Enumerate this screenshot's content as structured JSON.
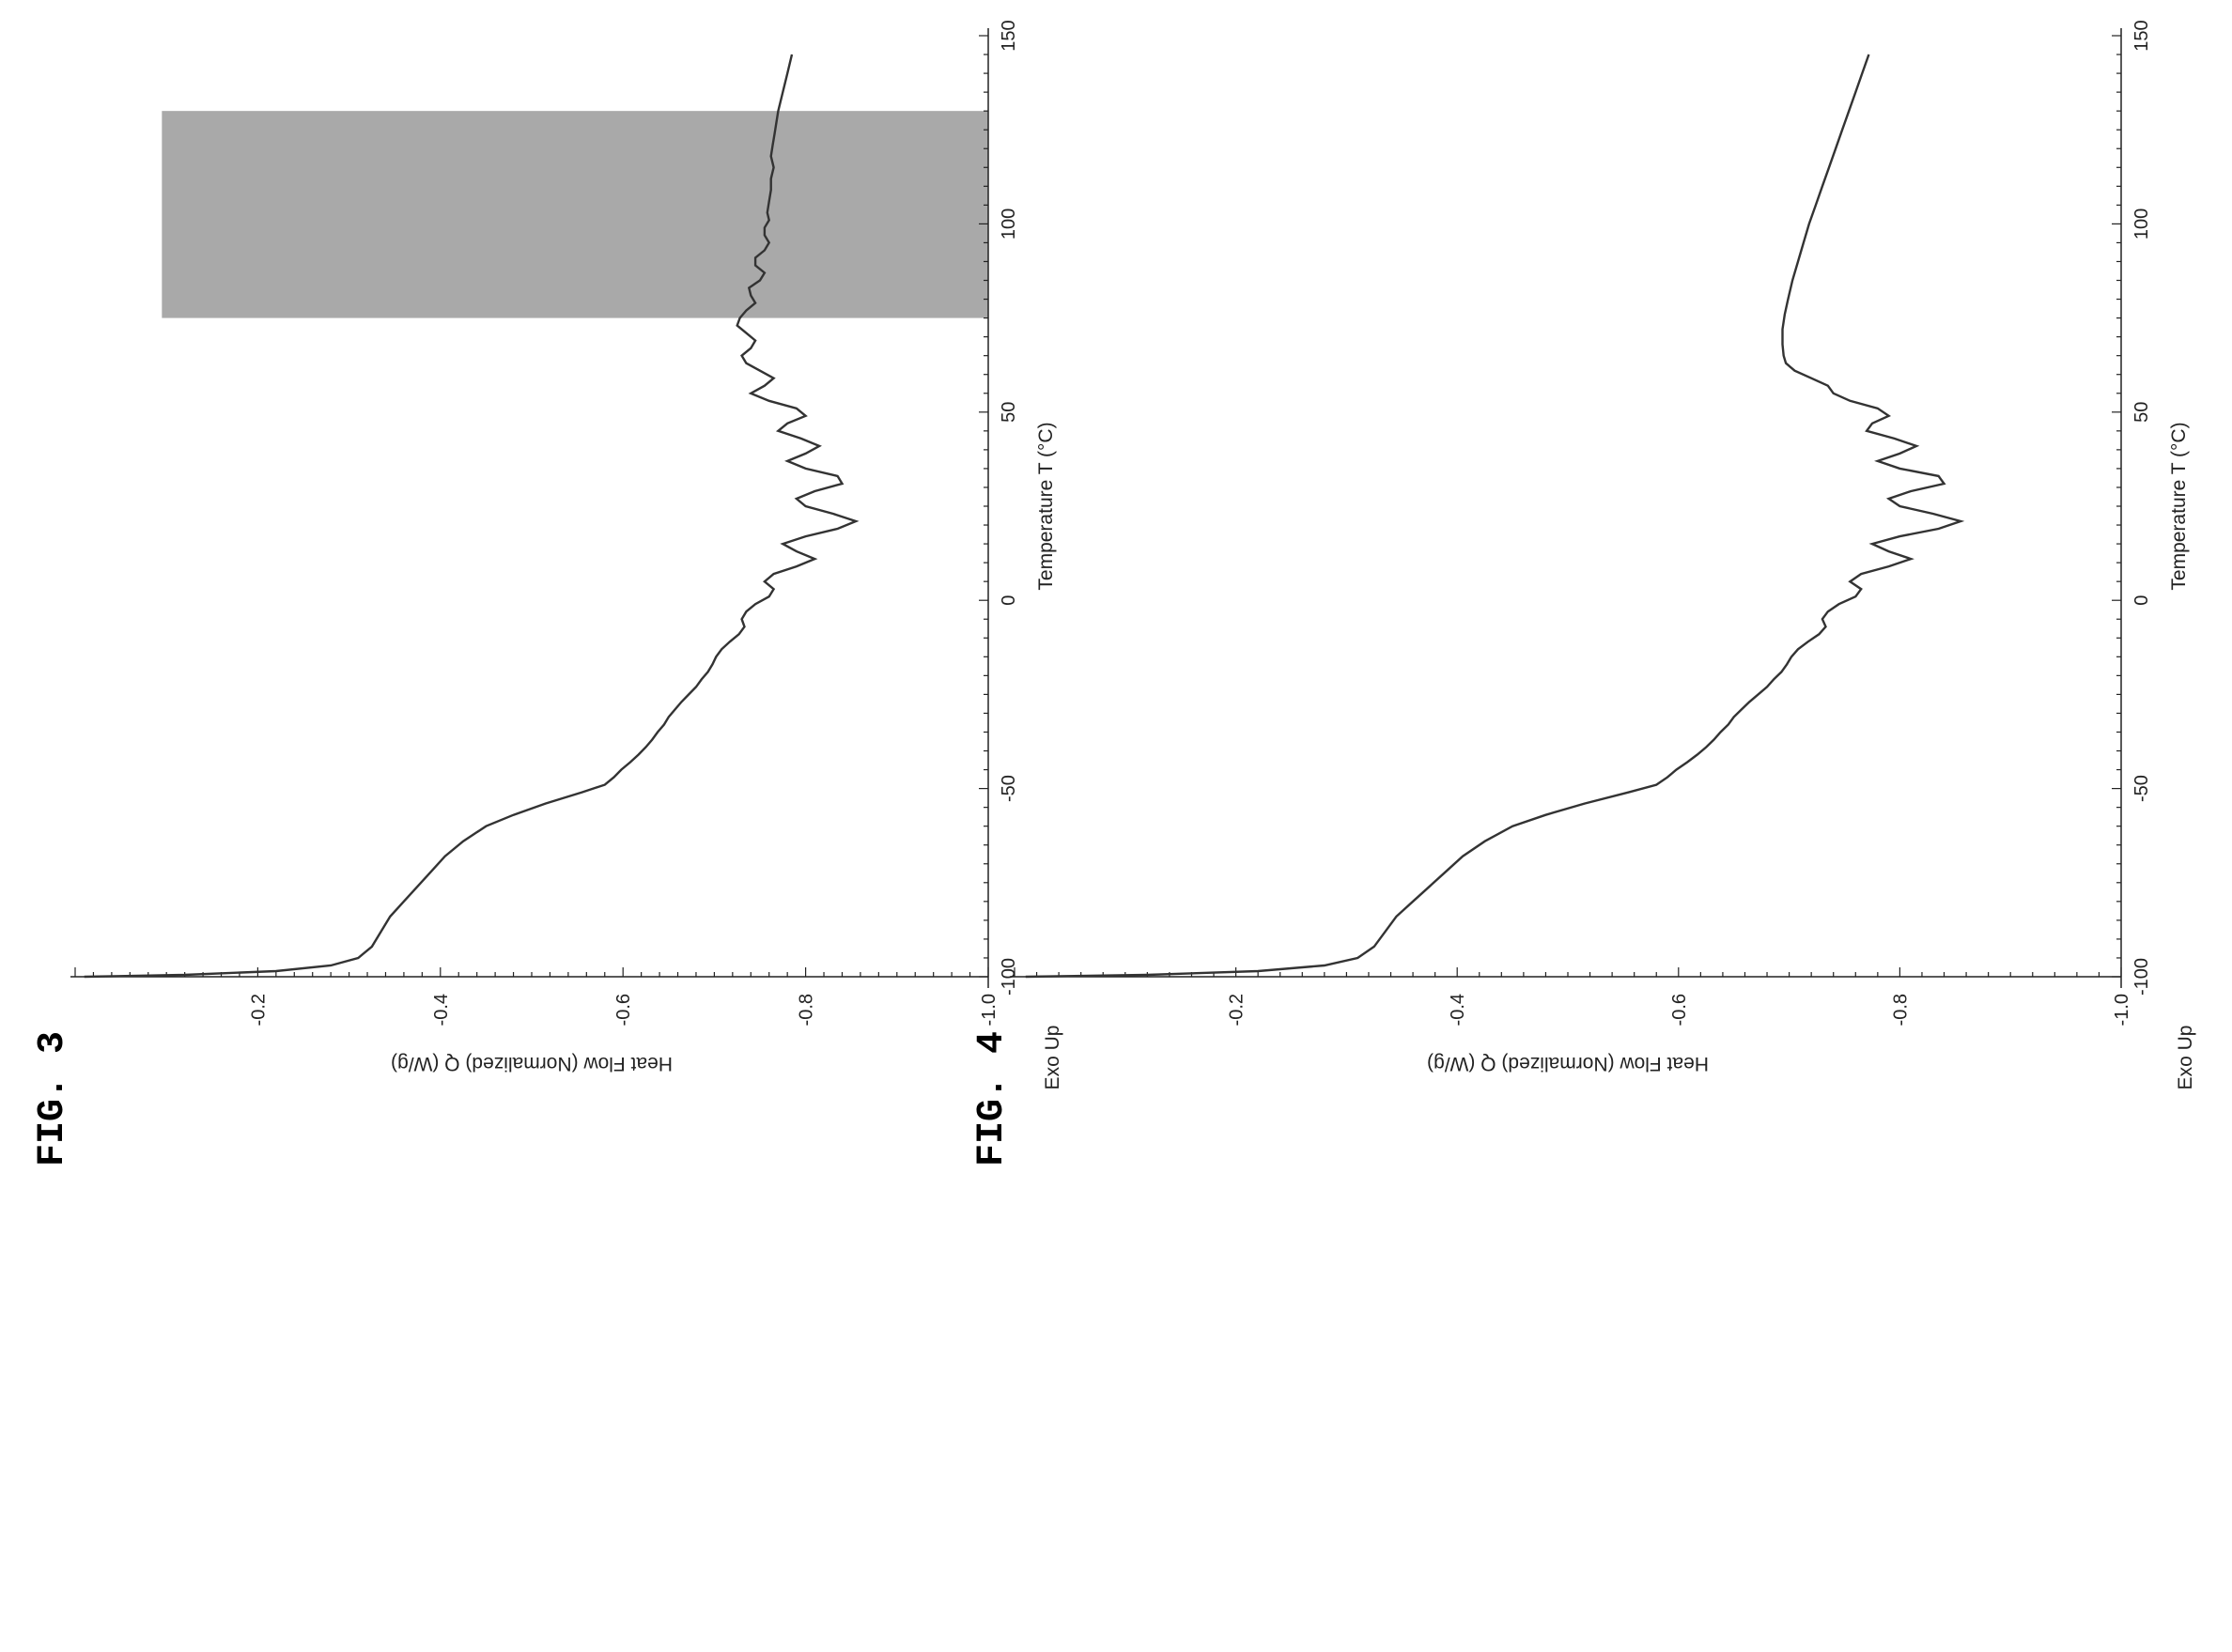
{
  "chart_data": [
    {
      "type": "line",
      "figure_label": "FIG. 3",
      "xlabel": "Temperature T (°C)",
      "ylabel": "Heat Flow (Normalized) Q (W/g)",
      "exo_label": "Exo Up",
      "xlim": [
        -100,
        150
      ],
      "ylim": [
        -1.0,
        0.0
      ],
      "x_ticks": [
        "-100",
        "-50",
        "0",
        "50",
        "100",
        "150"
      ],
      "y_ticks": [
        "-0.2",
        "-0.4",
        "-0.6",
        "-0.8",
        "-1.0"
      ],
      "shaded_region": [
        75,
        130
      ],
      "series": [
        {
          "points": [
            [
              -100,
              -0.01
            ],
            [
              -99.5,
              -0.12
            ],
            [
              -98.5,
              -0.22
            ],
            [
              -97,
              -0.28
            ],
            [
              -95,
              -0.31
            ],
            [
              -92,
              -0.325
            ],
            [
              -88,
              -0.335
            ],
            [
              -84,
              -0.345
            ],
            [
              -80,
              -0.36
            ],
            [
              -76,
              -0.375
            ],
            [
              -72,
              -0.39
            ],
            [
              -68,
              -0.405
            ],
            [
              -64,
              -0.425
            ],
            [
              -60,
              -0.45
            ],
            [
              -57,
              -0.48
            ],
            [
              -54,
              -0.515
            ],
            [
              -51,
              -0.555
            ],
            [
              -49,
              -0.58
            ],
            [
              -47,
              -0.59
            ],
            [
              -45,
              -0.598
            ],
            [
              -43,
              -0.608
            ],
            [
              -41,
              -0.617
            ],
            [
              -39,
              -0.625
            ],
            [
              -37,
              -0.632
            ],
            [
              -35,
              -0.638
            ],
            [
              -33,
              -0.645
            ],
            [
              -31,
              -0.65
            ],
            [
              -29,
              -0.657
            ],
            [
              -27,
              -0.664
            ],
            [
              -25,
              -0.672
            ],
            [
              -23,
              -0.68
            ],
            [
              -21,
              -0.686
            ],
            [
              -19,
              -0.693
            ],
            [
              -17,
              -0.698
            ],
            [
              -15,
              -0.702
            ],
            [
              -13,
              -0.708
            ],
            [
              -11,
              -0.717
            ],
            [
              -9,
              -0.727
            ],
            [
              -7,
              -0.733
            ],
            [
              -5,
              -0.73
            ],
            [
              -3,
              -0.735
            ],
            [
              -1,
              -0.745
            ],
            [
              1,
              -0.76
            ],
            [
              3,
              -0.765
            ],
            [
              5,
              -0.755
            ],
            [
              7,
              -0.765
            ],
            [
              9,
              -0.79
            ],
            [
              11,
              -0.81
            ],
            [
              13,
              -0.79
            ],
            [
              15,
              -0.775
            ],
            [
              17,
              -0.8
            ],
            [
              19,
              -0.835
            ],
            [
              21,
              -0.855
            ],
            [
              23,
              -0.83
            ],
            [
              25,
              -0.8
            ],
            [
              27,
              -0.79
            ],
            [
              29,
              -0.81
            ],
            [
              31,
              -0.84
            ],
            [
              33,
              -0.835
            ],
            [
              35,
              -0.8
            ],
            [
              37,
              -0.78
            ],
            [
              39,
              -0.8
            ],
            [
              41,
              -0.815
            ],
            [
              43,
              -0.795
            ],
            [
              45,
              -0.77
            ],
            [
              47,
              -0.78
            ],
            [
              49,
              -0.8
            ],
            [
              51,
              -0.79
            ],
            [
              53,
              -0.76
            ],
            [
              55,
              -0.74
            ],
            [
              57,
              -0.755
            ],
            [
              59,
              -0.765
            ],
            [
              61,
              -0.75
            ],
            [
              63,
              -0.735
            ],
            [
              65,
              -0.73
            ],
            [
              67,
              -0.74
            ],
            [
              69,
              -0.745
            ],
            [
              71,
              -0.735
            ],
            [
              73,
              -0.725
            ],
            [
              75,
              -0.728
            ],
            [
              77,
              -0.735
            ],
            [
              79,
              -0.745
            ],
            [
              81,
              -0.74
            ],
            [
              83,
              -0.738
            ],
            [
              85,
              -0.75
            ],
            [
              87,
              -0.755
            ],
            [
              89,
              -0.745
            ],
            [
              91,
              -0.745
            ],
            [
              93,
              -0.755
            ],
            [
              95,
              -0.76
            ],
            [
              97,
              -0.755
            ],
            [
              99,
              -0.755
            ],
            [
              101,
              -0.76
            ],
            [
              103,
              -0.758
            ],
            [
              106,
              -0.76
            ],
            [
              109,
              -0.762
            ],
            [
              112,
              -0.762
            ],
            [
              115,
              -0.765
            ],
            [
              118,
              -0.762
            ],
            [
              121,
              -0.764
            ],
            [
              124,
              -0.766
            ],
            [
              127,
              -0.768
            ],
            [
              130,
              -0.77
            ],
            [
              135,
              -0.775
            ],
            [
              140,
              -0.78
            ],
            [
              145,
              -0.785
            ]
          ]
        }
      ]
    },
    {
      "type": "line",
      "figure_label": "FIG. 4",
      "xlabel": "Temperature T (°C)",
      "ylabel": "Heat Flow (Normalized) Q (W/g)",
      "exo_label": "Exo Up",
      "xlim": [
        -100,
        150
      ],
      "ylim": [
        -1.0,
        0.0
      ],
      "x_ticks": [
        "-100",
        "-50",
        "0",
        "50",
        "100",
        "150"
      ],
      "y_ticks": [
        "-0.2",
        "-0.4",
        "-0.6",
        "-0.8",
        "-1.0"
      ],
      "series": [
        {
          "points": [
            [
              -100,
              -0.01
            ],
            [
              -99.5,
              -0.12
            ],
            [
              -98.5,
              -0.22
            ],
            [
              -97,
              -0.28
            ],
            [
              -95,
              -0.31
            ],
            [
              -92,
              -0.325
            ],
            [
              -88,
              -0.335
            ],
            [
              -84,
              -0.345
            ],
            [
              -80,
              -0.36
            ],
            [
              -76,
              -0.375
            ],
            [
              -72,
              -0.39
            ],
            [
              -68,
              -0.405
            ],
            [
              -64,
              -0.425
            ],
            [
              -60,
              -0.45
            ],
            [
              -57,
              -0.48
            ],
            [
              -54,
              -0.515
            ],
            [
              -51,
              -0.555
            ],
            [
              -49,
              -0.58
            ],
            [
              -47,
              -0.59
            ],
            [
              -45,
              -0.598
            ],
            [
              -43,
              -0.608
            ],
            [
              -41,
              -0.617
            ],
            [
              -39,
              -0.625
            ],
            [
              -37,
              -0.632
            ],
            [
              -35,
              -0.638
            ],
            [
              -33,
              -0.645
            ],
            [
              -31,
              -0.65
            ],
            [
              -29,
              -0.657
            ],
            [
              -27,
              -0.664
            ],
            [
              -25,
              -0.672
            ],
            [
              -23,
              -0.68
            ],
            [
              -21,
              -0.686
            ],
            [
              -19,
              -0.693
            ],
            [
              -17,
              -0.698
            ],
            [
              -15,
              -0.702
            ],
            [
              -13,
              -0.708
            ],
            [
              -11,
              -0.717
            ],
            [
              -9,
              -0.727
            ],
            [
              -7,
              -0.733
            ],
            [
              -5,
              -0.73
            ],
            [
              -3,
              -0.735
            ],
            [
              -1,
              -0.745
            ],
            [
              1,
              -0.76
            ],
            [
              3,
              -0.765
            ],
            [
              5,
              -0.755
            ],
            [
              7,
              -0.765
            ],
            [
              9,
              -0.79
            ],
            [
              11,
              -0.81
            ],
            [
              13,
              -0.79
            ],
            [
              15,
              -0.775
            ],
            [
              17,
              -0.8
            ],
            [
              19,
              -0.835
            ],
            [
              21,
              -0.855
            ],
            [
              23,
              -0.83
            ],
            [
              25,
              -0.8
            ],
            [
              27,
              -0.79
            ],
            [
              29,
              -0.81
            ],
            [
              31,
              -0.84
            ],
            [
              33,
              -0.835
            ],
            [
              35,
              -0.8
            ],
            [
              37,
              -0.78
            ],
            [
              39,
              -0.8
            ],
            [
              41,
              -0.815
            ],
            [
              43,
              -0.795
            ],
            [
              45,
              -0.77
            ],
            [
              47,
              -0.775
            ],
            [
              49,
              -0.79
            ],
            [
              51,
              -0.78
            ],
            [
              53,
              -0.755
            ],
            [
              55,
              -0.74
            ],
            [
              57,
              -0.735
            ],
            [
              59,
              -0.72
            ],
            [
              61,
              -0.705
            ],
            [
              63,
              -0.697
            ],
            [
              65,
              -0.695
            ],
            [
              68,
              -0.694
            ],
            [
              72,
              -0.694
            ],
            [
              76,
              -0.696
            ],
            [
              80,
              -0.699
            ],
            [
              85,
              -0.703
            ],
            [
              90,
              -0.708
            ],
            [
              95,
              -0.713
            ],
            [
              100,
              -0.718
            ],
            [
              105,
              -0.724
            ],
            [
              110,
              -0.73
            ],
            [
              115,
              -0.736
            ],
            [
              120,
              -0.742
            ],
            [
              125,
              -0.748
            ],
            [
              130,
              -0.754
            ],
            [
              135,
              -0.76
            ],
            [
              140,
              -0.766
            ],
            [
              145,
              -0.772
            ]
          ]
        }
      ]
    }
  ]
}
